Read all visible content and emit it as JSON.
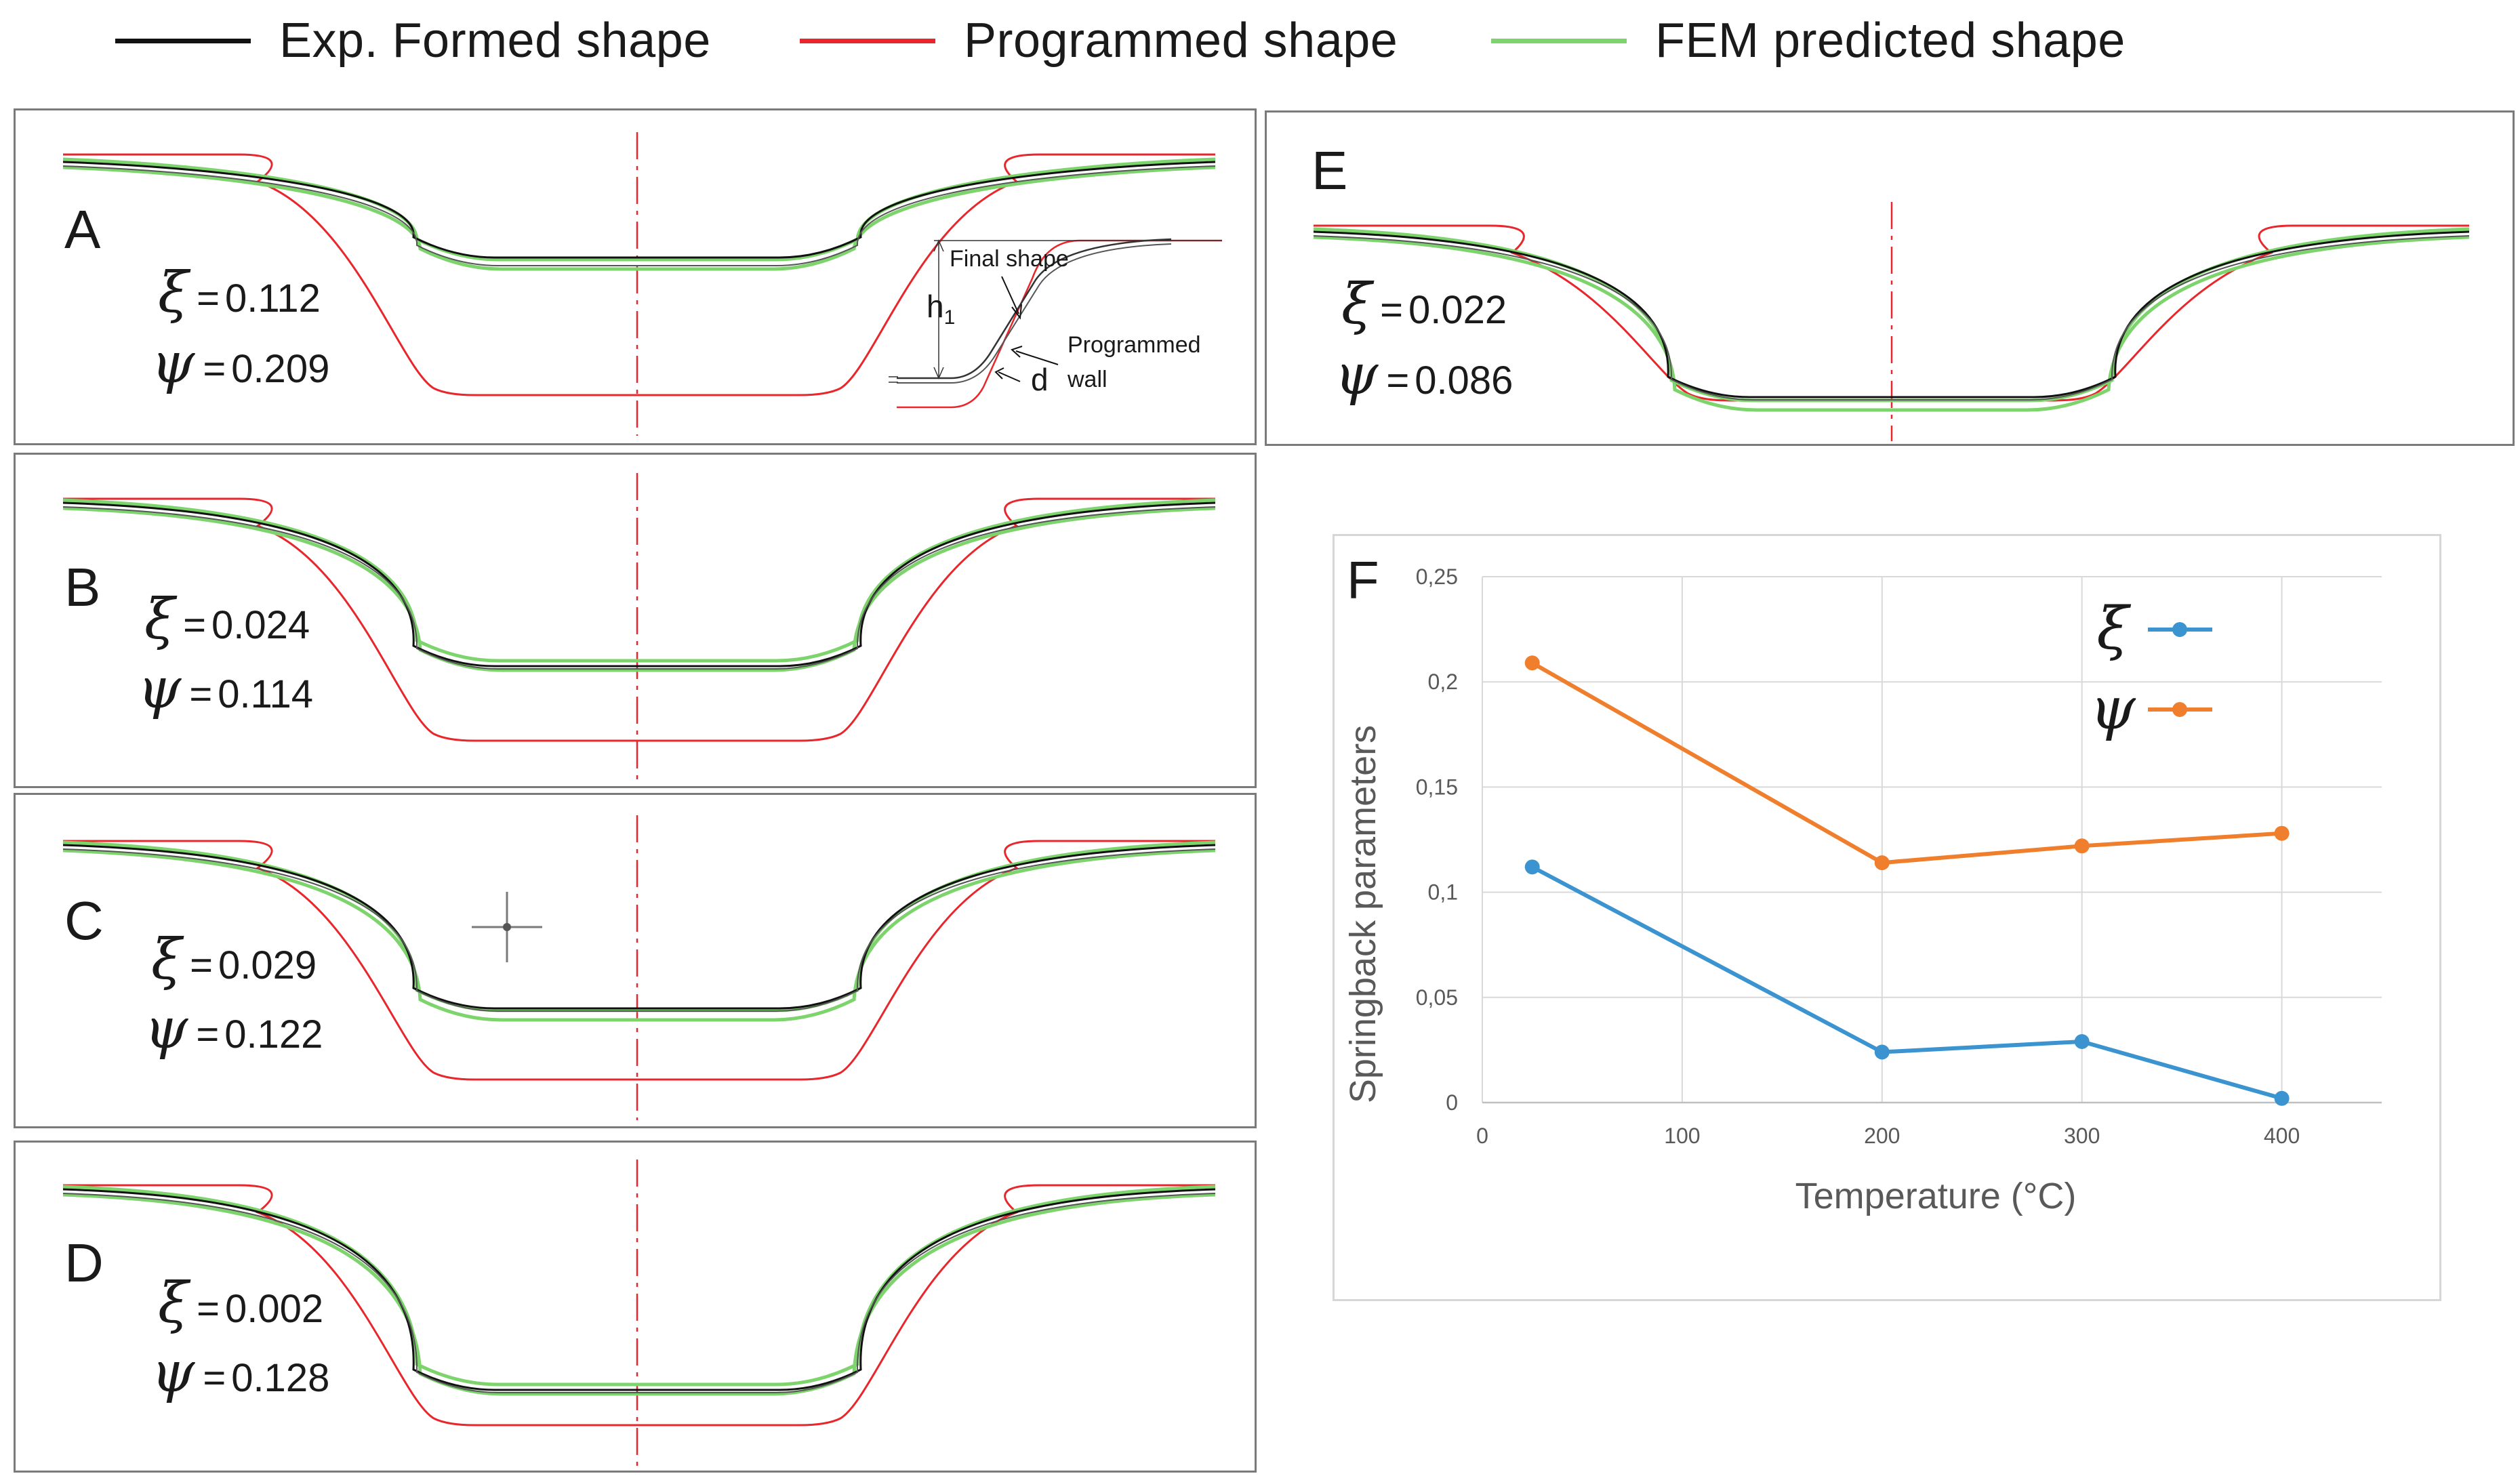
{
  "legend": [
    {
      "label": "Exp. Formed shape",
      "color": "#111111"
    },
    {
      "label": "Programmed shape",
      "color": "#e8262b"
    },
    {
      "label": "FEM predicted shape",
      "color": "#7ed46c"
    }
  ],
  "panels": [
    {
      "id": "A",
      "letter": "A",
      "xi": "0.112",
      "psi": "0.209"
    },
    {
      "id": "B",
      "letter": "B",
      "xi": "0.024",
      "psi": "0.114"
    },
    {
      "id": "C",
      "letter": "C",
      "xi": "0.029",
      "psi": "0.122"
    },
    {
      "id": "D",
      "letter": "D",
      "xi": "0.002",
      "psi": "0.128"
    },
    {
      "id": "E",
      "letter": "E",
      "xi": "0.022",
      "psi": "0.086"
    }
  ],
  "symbols": {
    "xi": "ξ",
    "psi": "ψ",
    "equals": "="
  },
  "inset": {
    "final_shape": "Final shape",
    "h1": "h",
    "h1_sub": "1",
    "programmed": "Programmed",
    "wall": "wall",
    "d": "d"
  },
  "chart_data": {
    "panel_letter": "F",
    "type": "line",
    "x": [
      25,
      200,
      300,
      400
    ],
    "series": [
      {
        "name": "ξ",
        "color": "#3b94d0",
        "values": [
          0.112,
          0.024,
          0.029,
          0.002
        ]
      },
      {
        "name": "ψ",
        "color": "#f07f2d",
        "values": [
          0.209,
          0.114,
          0.122,
          0.128
        ]
      }
    ],
    "xlabel": "Temperature (°C)",
    "ylabel": "Springback parameters",
    "xlim": [
      0,
      450
    ],
    "ylim": [
      0,
      0.25
    ],
    "xticks": [
      0,
      100,
      200,
      300,
      400
    ],
    "xtick_labels": [
      "0",
      "100",
      "200",
      "300",
      "400"
    ],
    "yticks": [
      0,
      0.05,
      0.1,
      0.15,
      0.2,
      0.25
    ],
    "ytick_labels": [
      "0",
      "0,05",
      "0,1",
      "0,15",
      "0,2",
      "0,25"
    ],
    "grid": true,
    "legend_position": "top-right"
  }
}
